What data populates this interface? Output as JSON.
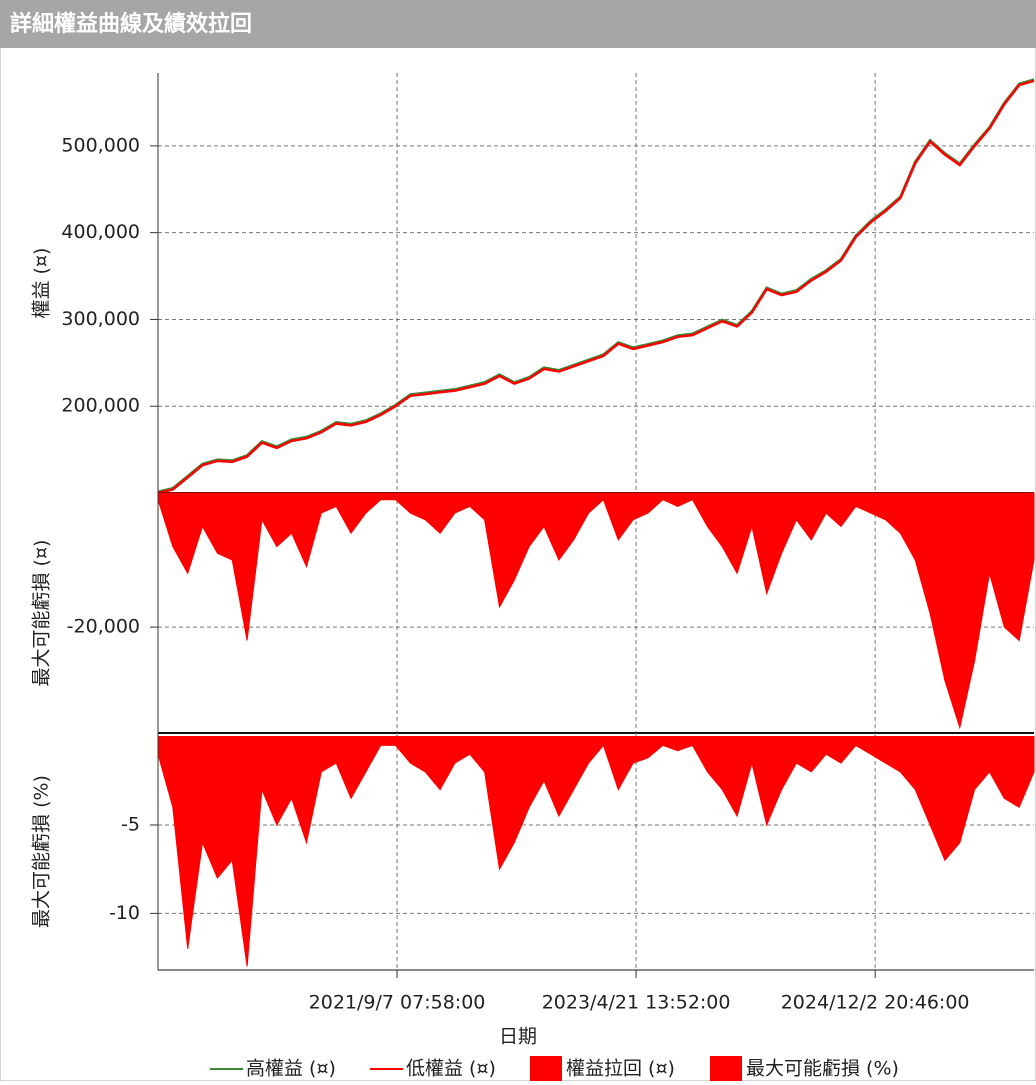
{
  "title": "詳細權益曲線及績效拉回",
  "chart_data": [
    {
      "type": "line",
      "y_label": "權益 (¤)",
      "ylim": [
        100000,
        584000
      ],
      "yticks": [
        {
          "value": 200000,
          "label": "200,000"
        },
        {
          "value": 300000,
          "label": "300,000"
        },
        {
          "value": 400000,
          "label": "400,000"
        },
        {
          "value": 500000,
          "label": "500,000"
        }
      ],
      "grid": true,
      "series": [
        {
          "name": "高權益 (¤)",
          "color": "#3a8a3a",
          "values": [
            101500,
            105500,
            119500,
            133500,
            138500,
            137500,
            143500,
            159500,
            153500,
            161500,
            164500,
            171500,
            181500,
            179500,
            183500,
            191500,
            201500,
            213500,
            215500,
            217500,
            219500,
            223500,
            227500,
            236500,
            227500,
            233500,
            244500,
            241500,
            247500,
            253500,
            259500,
            273500,
            267500,
            271500,
            275500,
            281500,
            283500,
            291500,
            299500,
            293500,
            309500,
            336500,
            329500,
            333500,
            346500,
            356500,
            369500,
            396500,
            413500,
            426500,
            441500,
            481500,
            506500,
            491500,
            479500,
            501500,
            521500,
            549500,
            571500,
            576500
          ]
        },
        {
          "name": "低權益 (¤)",
          "color": "#ff0000",
          "values": [
            100000,
            104000,
            118000,
            132000,
            137000,
            136000,
            142000,
            158000,
            152000,
            160000,
            163000,
            170000,
            180000,
            178000,
            182000,
            190000,
            200000,
            212000,
            214000,
            216000,
            218000,
            222000,
            226000,
            235000,
            226000,
            232000,
            243000,
            240000,
            246000,
            252000,
            258000,
            272000,
            266000,
            270000,
            274000,
            280000,
            282000,
            290000,
            298000,
            292000,
            308000,
            335000,
            328000,
            332000,
            345000,
            355000,
            368000,
            395000,
            412000,
            425000,
            440000,
            480000,
            505000,
            490000,
            478000,
            500000,
            520000,
            548000,
            570000,
            575000
          ]
        }
      ]
    },
    {
      "type": "area",
      "y_label": "最大可能虧損 (¤)",
      "ylim": [
        -35800,
        0
      ],
      "yticks": [
        {
          "value": -20000,
          "label": "-20,000"
        }
      ],
      "grid": true,
      "series": [
        {
          "name": "權益拉回 (¤)",
          "color": "#ff0000",
          "values": [
            -1000,
            -8000,
            -12000,
            -5000,
            -9000,
            -10000,
            -22000,
            -4000,
            -8000,
            -6000,
            -11000,
            -3000,
            -2000,
            -6000,
            -3000,
            -1000,
            -1000,
            -3000,
            -4000,
            -6000,
            -3000,
            -2000,
            -4000,
            -17000,
            -13000,
            -8000,
            -5000,
            -10000,
            -7000,
            -3000,
            -1000,
            -7000,
            -4000,
            -3000,
            -1000,
            -2000,
            -1000,
            -5000,
            -8000,
            -12000,
            -5000,
            -15000,
            -9000,
            -4000,
            -7000,
            -3000,
            -5000,
            -2000,
            -3000,
            -4000,
            -6000,
            -10000,
            -18000,
            -28000,
            -35000,
            -25000,
            -12000,
            -20000,
            -22000,
            -10000
          ]
        }
      ]
    },
    {
      "type": "area",
      "y_label": "最大可能虧損 (%)",
      "x_label": "日期",
      "ylim": [
        -13.2,
        0.2
      ],
      "yticks": [
        -10,
        -5
      ],
      "xlim": [
        0,
        59
      ],
      "xticks": [
        {
          "value": 16.1,
          "label": "2021/9/7 07:58:00"
        },
        {
          "value": 32.2,
          "label": "2023/4/21 13:52:00"
        },
        {
          "value": 48.3,
          "label": "2024/12/2 20:46:00"
        }
      ],
      "grid": true,
      "series": [
        {
          "name": "最大可能虧損 (%)",
          "color": "#ff0000",
          "values": [
            -1,
            -4,
            -12,
            -6,
            -8,
            -7,
            -13,
            -3,
            -5,
            -3.5,
            -6,
            -2,
            -1.5,
            -3.5,
            -2,
            -0.5,
            -0.5,
            -1.5,
            -2,
            -3,
            -1.5,
            -1,
            -2,
            -7.5,
            -6,
            -4,
            -2.5,
            -4.5,
            -3,
            -1.5,
            -0.5,
            -3,
            -1.5,
            -1.2,
            -0.5,
            -0.8,
            -0.5,
            -2,
            -3,
            -4.5,
            -1.5,
            -5,
            -3,
            -1.5,
            -2,
            -1,
            -1.5,
            -0.5,
            -1,
            -1.5,
            -2,
            -3,
            -5,
            -7,
            -6,
            -3,
            -2,
            -3.5,
            -4,
            -2
          ]
        }
      ]
    }
  ]
}
